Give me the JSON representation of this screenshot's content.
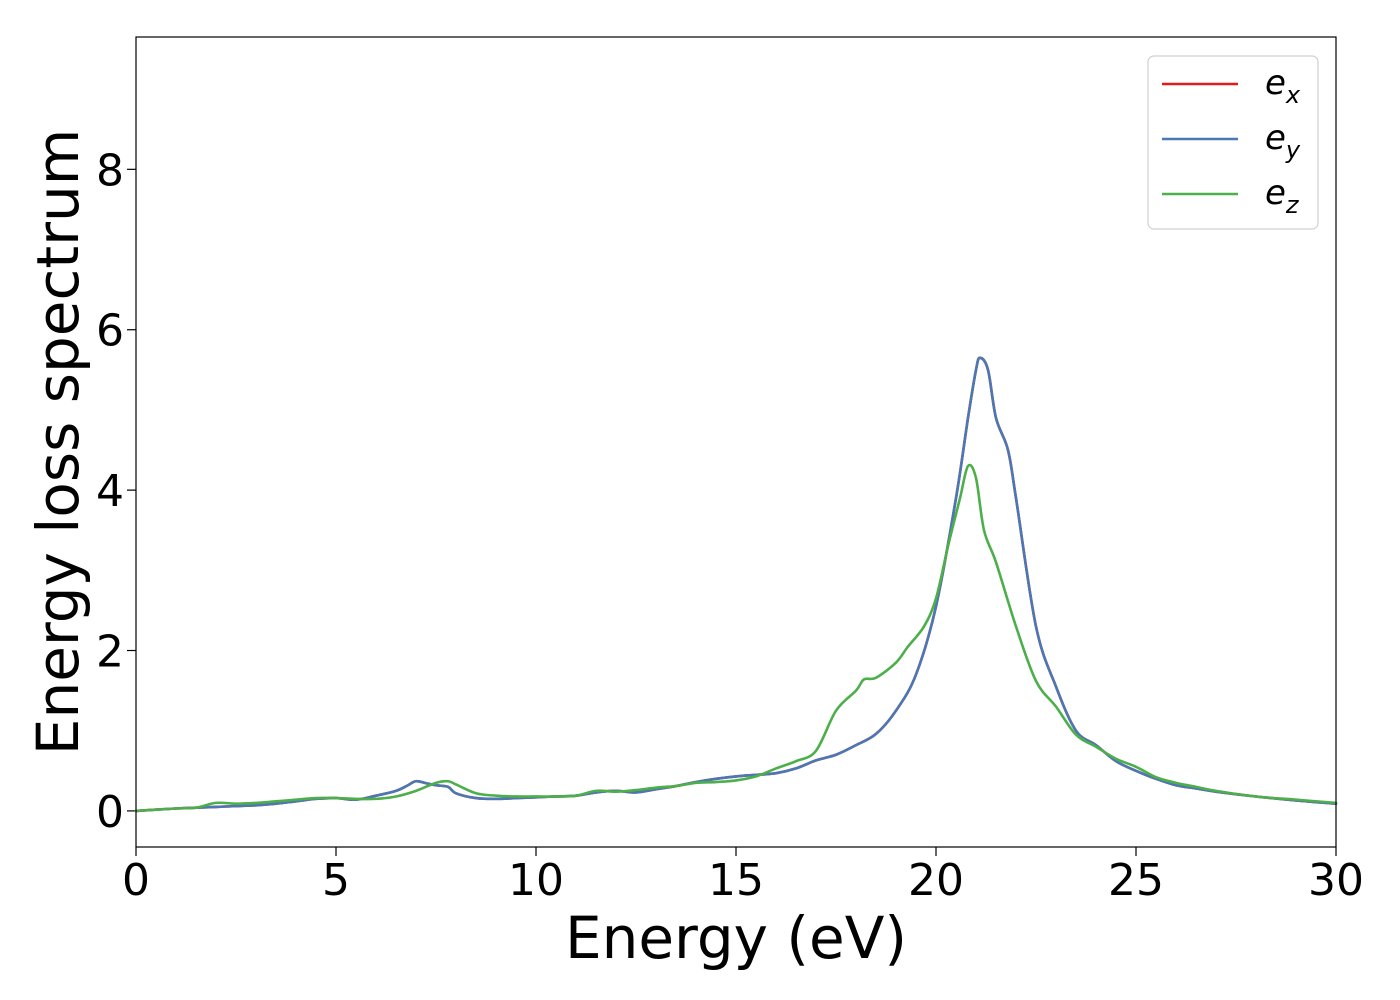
{
  "chart_data": {
    "type": "line",
    "title": "",
    "xlabel": "Energy (eV)",
    "ylabel": "Energy loss spectrum",
    "xlim": [
      0,
      30
    ],
    "ylim": [
      -0.45,
      9.65
    ],
    "xticks": [
      0,
      5,
      10,
      15,
      20,
      25,
      30
    ],
    "yticks": [
      0,
      2,
      4,
      6,
      8
    ],
    "grid": false,
    "legend_position": "top-right",
    "series": [
      {
        "name": "e_x",
        "legend_main": "e",
        "legend_sub": "x",
        "color": "#e41a1c",
        "x": [
          0,
          1,
          1.5,
          2,
          2.5,
          3,
          3.5,
          4,
          4.5,
          5,
          5.5,
          6,
          6.5,
          6.8,
          7,
          7.3,
          7.5,
          7.8,
          8,
          8.5,
          9,
          9.5,
          10,
          10.5,
          11,
          11.5,
          12,
          12.5,
          13,
          13.5,
          14,
          14.5,
          15,
          15.5,
          16,
          16.5,
          17,
          17.5,
          18,
          18.5,
          19,
          19.5,
          20,
          20.5,
          20.8,
          21,
          21.1,
          21.3,
          21.5,
          21.8,
          22,
          22.5,
          23,
          23.5,
          24,
          24.5,
          25,
          25.5,
          26,
          26.5,
          27,
          28,
          29,
          30
        ],
        "y": [
          0,
          0.03,
          0.04,
          0.05,
          0.06,
          0.07,
          0.09,
          0.12,
          0.15,
          0.16,
          0.14,
          0.19,
          0.25,
          0.32,
          0.37,
          0.34,
          0.32,
          0.3,
          0.22,
          0.16,
          0.15,
          0.16,
          0.17,
          0.18,
          0.19,
          0.23,
          0.25,
          0.23,
          0.27,
          0.31,
          0.36,
          0.4,
          0.43,
          0.45,
          0.47,
          0.53,
          0.63,
          0.7,
          0.82,
          0.96,
          1.25,
          1.7,
          2.55,
          3.9,
          4.9,
          5.5,
          5.65,
          5.5,
          4.9,
          4.5,
          3.9,
          2.3,
          1.55,
          1.0,
          0.82,
          0.62,
          0.5,
          0.4,
          0.32,
          0.28,
          0.24,
          0.18,
          0.13,
          0.09
        ]
      },
      {
        "name": "e_y",
        "legend_main": "e",
        "legend_sub": "y",
        "color": "#4a78b5",
        "x": [
          0,
          1,
          1.5,
          2,
          2.5,
          3,
          3.5,
          4,
          4.5,
          5,
          5.5,
          6,
          6.5,
          6.8,
          7,
          7.3,
          7.5,
          7.8,
          8,
          8.5,
          9,
          9.5,
          10,
          10.5,
          11,
          11.5,
          12,
          12.5,
          13,
          13.5,
          14,
          14.5,
          15,
          15.5,
          16,
          16.5,
          17,
          17.5,
          18,
          18.5,
          19,
          19.5,
          20,
          20.5,
          20.8,
          21,
          21.1,
          21.3,
          21.5,
          21.8,
          22,
          22.5,
          23,
          23.5,
          24,
          24.5,
          25,
          25.5,
          26,
          26.5,
          27,
          28,
          29,
          30
        ],
        "y": [
          0,
          0.03,
          0.04,
          0.05,
          0.06,
          0.07,
          0.09,
          0.12,
          0.15,
          0.16,
          0.14,
          0.19,
          0.25,
          0.32,
          0.37,
          0.34,
          0.32,
          0.3,
          0.22,
          0.16,
          0.15,
          0.16,
          0.17,
          0.18,
          0.19,
          0.23,
          0.25,
          0.23,
          0.27,
          0.31,
          0.36,
          0.4,
          0.43,
          0.45,
          0.47,
          0.53,
          0.63,
          0.7,
          0.82,
          0.96,
          1.25,
          1.7,
          2.55,
          3.9,
          4.9,
          5.5,
          5.65,
          5.5,
          4.9,
          4.5,
          3.9,
          2.3,
          1.55,
          1.0,
          0.82,
          0.62,
          0.5,
          0.4,
          0.32,
          0.28,
          0.24,
          0.18,
          0.13,
          0.09
        ]
      },
      {
        "name": "e_z",
        "legend_main": "e",
        "legend_sub": "z",
        "color": "#4daf4a",
        "x": [
          0,
          1,
          1.5,
          2,
          2.5,
          3,
          3.5,
          4,
          4.5,
          5,
          5.5,
          6,
          6.5,
          7,
          7.5,
          7.8,
          8,
          8.5,
          9,
          9.5,
          10,
          10.5,
          11,
          11.5,
          12,
          12.5,
          13,
          13.5,
          14,
          14.5,
          15,
          15.5,
          16,
          16.5,
          17,
          17.5,
          18,
          18.2,
          18.5,
          19,
          19.3,
          19.7,
          20,
          20.3,
          20.6,
          20.8,
          21,
          21.2,
          21.5,
          22,
          22.5,
          23,
          23.5,
          24,
          24.5,
          25,
          25.5,
          26,
          26.5,
          27,
          28,
          29,
          30
        ],
        "y": [
          0,
          0.03,
          0.04,
          0.1,
          0.09,
          0.1,
          0.12,
          0.14,
          0.16,
          0.16,
          0.15,
          0.15,
          0.18,
          0.25,
          0.35,
          0.37,
          0.33,
          0.22,
          0.19,
          0.18,
          0.18,
          0.18,
          0.19,
          0.25,
          0.24,
          0.26,
          0.29,
          0.31,
          0.35,
          0.36,
          0.38,
          0.43,
          0.53,
          0.62,
          0.75,
          1.25,
          1.5,
          1.64,
          1.66,
          1.85,
          2.05,
          2.3,
          2.65,
          3.3,
          3.9,
          4.3,
          4.15,
          3.5,
          3.1,
          2.3,
          1.62,
          1.3,
          0.95,
          0.8,
          0.65,
          0.55,
          0.42,
          0.35,
          0.3,
          0.25,
          0.18,
          0.14,
          0.1
        ]
      }
    ]
  }
}
